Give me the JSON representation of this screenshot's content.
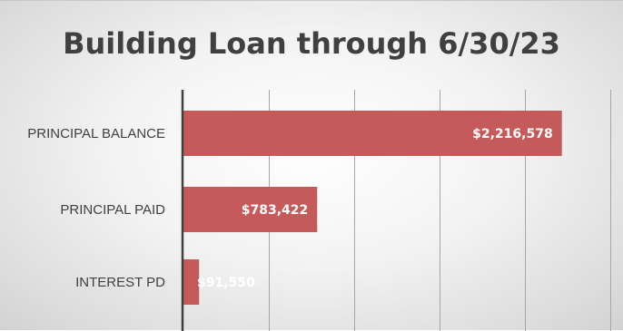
{
  "chart_data": {
    "type": "bar",
    "orientation": "horizontal",
    "title": "Building Loan through 6/30/23",
    "categories": [
      "PRINCIPAL BALANCE",
      "PRINCIPAL PAID",
      "INTEREST PD"
    ],
    "values": [
      2216578,
      783422,
      91550
    ],
    "value_labels": [
      "$2,216,578",
      "$783,422",
      "$91,550"
    ],
    "xlim": [
      0,
      2500000
    ],
    "grid": true,
    "legend": "none",
    "bar_color": "#c55a5a",
    "axis_color": "#404040",
    "grid_color": "#a6a6a6"
  }
}
